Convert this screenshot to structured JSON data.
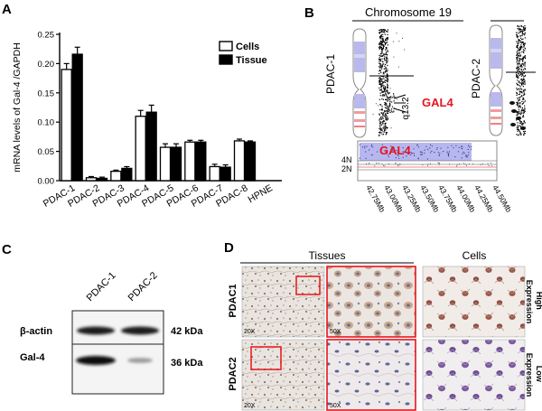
{
  "panels": {
    "A": {
      "letter": "A",
      "chart_data": {
        "type": "bar",
        "title": "",
        "xlabel": "",
        "ylabel": "mRNA levels of Gal-4 /GAPDH",
        "ylim": [
          0,
          0.25
        ],
        "yticks": [
          "0.00",
          "0.05",
          "0.10",
          "0.15",
          "0.20",
          "0.25"
        ],
        "categories": [
          "PDAC-1",
          "PDAC-2",
          "PDAC-3",
          "PDAC-4",
          "PDAC-5",
          "PDAC-6",
          "PDAC-7",
          "PDAC-8",
          "HPNE"
        ],
        "series": [
          {
            "name": "Cells",
            "color": "#ffffff",
            "values": [
              0.19,
              0.005,
              0.016,
              0.11,
              0.057,
              0.066,
              0.024,
              0.068,
              null
            ],
            "errors": [
              0.01,
              0.002,
              0.002,
              0.01,
              0.006,
              0.003,
              0.004,
              0.003,
              null
            ]
          },
          {
            "name": "Tissue",
            "color": "#000000",
            "values": [
              0.216,
              0.004,
              0.021,
              0.117,
              0.057,
              0.066,
              0.023,
              0.066,
              null
            ],
            "errors": [
              0.012,
              0.002,
              0.003,
              0.012,
              0.006,
              0.003,
              0.004,
              0.002,
              null
            ]
          }
        ],
        "legend": "top-right"
      }
    },
    "B": {
      "letter": "B",
      "title": "Chromosome 19",
      "sample_1": "PDAC-1",
      "sample_2": "PDAC-2",
      "band": "q13.2",
      "gene": "GAL4",
      "zoom_gene": "GAL4",
      "copy_labels": [
        "4N",
        "2N"
      ],
      "positions": [
        "42.75Mb",
        "43.00Mb",
        "43.25Mb",
        "43.50Mb",
        "43.75Mb",
        "44.00Mb",
        "44.25Mb",
        "44.50Mb"
      ],
      "gene_color": "#e8141c"
    },
    "C": {
      "letter": "C",
      "lanes": [
        "PDAC-1",
        "PDAC-2"
      ],
      "rows": [
        {
          "name": "β-actin",
          "size": "42 kDa"
        },
        {
          "name": "Gal-4",
          "size": "36 kDa"
        }
      ]
    },
    "D": {
      "letter": "D",
      "tissues_header": "Tissues",
      "cells_header": "Cells",
      "rows": [
        {
          "name": "PDAC1",
          "expression": [
            "High",
            "Expression"
          ],
          "mag_low": "20X",
          "mag_high": "50X"
        },
        {
          "name": "PDAC2",
          "expression": [
            "Low",
            "Expression"
          ],
          "mag_low": "20X",
          "mag_high": "50X"
        }
      ],
      "box_color": "#e8141c"
    }
  }
}
